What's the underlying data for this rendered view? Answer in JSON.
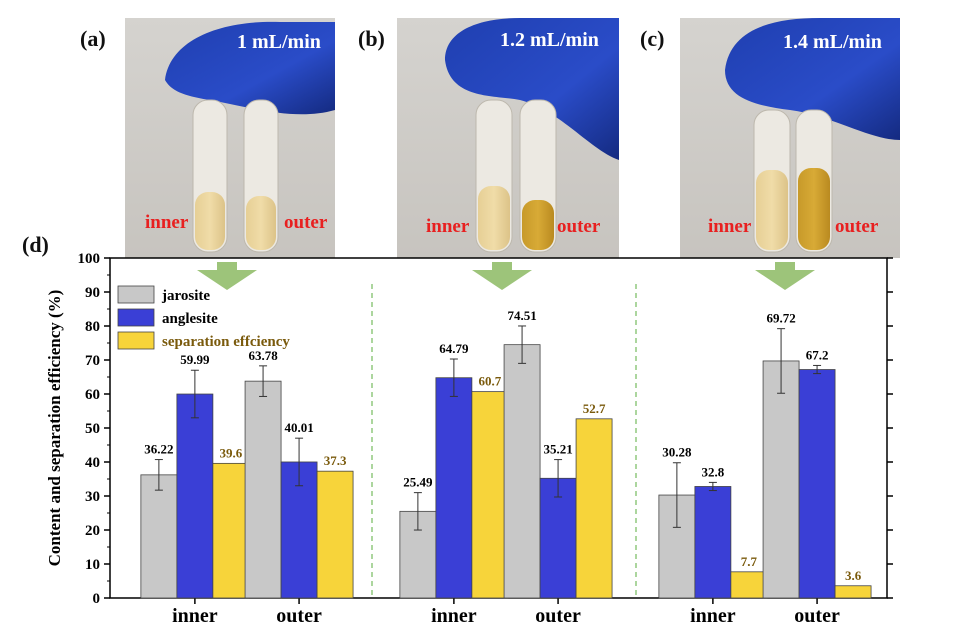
{
  "panels": [
    {
      "label": "(a)",
      "flow": "1 mL/min",
      "inner_tag": "inner",
      "outer_tag": "outer"
    },
    {
      "label": "(b)",
      "flow": "1.2 mL/min",
      "inner_tag": "inner",
      "outer_tag": "outer"
    },
    {
      "label": "(c)",
      "flow": "1.4 mL/min",
      "inner_tag": "inner",
      "outer_tag": "outer"
    }
  ],
  "chart_label": "(d)",
  "colors": {
    "jarosite": "#c8c8c8",
    "anglesite": "#3a3fd6",
    "separation": "#f7d43a",
    "sep_text": "#7a5a0c",
    "arrow": "#9dc47a",
    "divider": "#7fbf6a",
    "tag_red": "#e82020"
  },
  "chart_data": {
    "type": "bar",
    "ylabel": "Content and separation efficiency (%)",
    "ylim": [
      0,
      100
    ],
    "yticks": [
      0,
      10,
      20,
      30,
      40,
      50,
      60,
      70,
      80,
      90,
      100
    ],
    "groups": [
      {
        "flow": "1 mL/min",
        "categories": [
          "inner",
          "outer"
        ]
      },
      {
        "flow": "1.2 mL/min",
        "categories": [
          "inner",
          "outer"
        ]
      },
      {
        "flow": "1.4 mL/min",
        "categories": [
          "inner",
          "outer"
        ]
      }
    ],
    "series": [
      {
        "name": "jarosite",
        "values": [
          36.22,
          63.78,
          25.49,
          74.51,
          30.28,
          69.72
        ],
        "labels": [
          "36.22",
          "63.78",
          "25.49",
          "74.51",
          "30.28",
          "69.72"
        ],
        "errors": [
          4.5,
          4.5,
          5.5,
          5.5,
          9.5,
          9.5
        ]
      },
      {
        "name": "anglesite",
        "values": [
          59.99,
          40.01,
          64.79,
          35.21,
          32.8,
          67.2
        ],
        "labels": [
          "59.99",
          "40.01",
          "64.79",
          "35.21",
          "32.8",
          "67.2"
        ],
        "errors": [
          7.0,
          7.0,
          5.5,
          5.5,
          1.2,
          1.2
        ]
      },
      {
        "name": "separation effciency",
        "values": [
          39.6,
          37.3,
          60.7,
          52.7,
          7.7,
          3.6
        ],
        "labels": [
          "39.6",
          "37.3",
          "60.7",
          "52.7",
          "7.7",
          "3.6"
        ],
        "errors": [
          0,
          0,
          0,
          0,
          0,
          0
        ]
      }
    ],
    "legend": [
      "jarosite",
      "anglesite",
      "separation effciency"
    ],
    "legend_position": "top-left"
  }
}
